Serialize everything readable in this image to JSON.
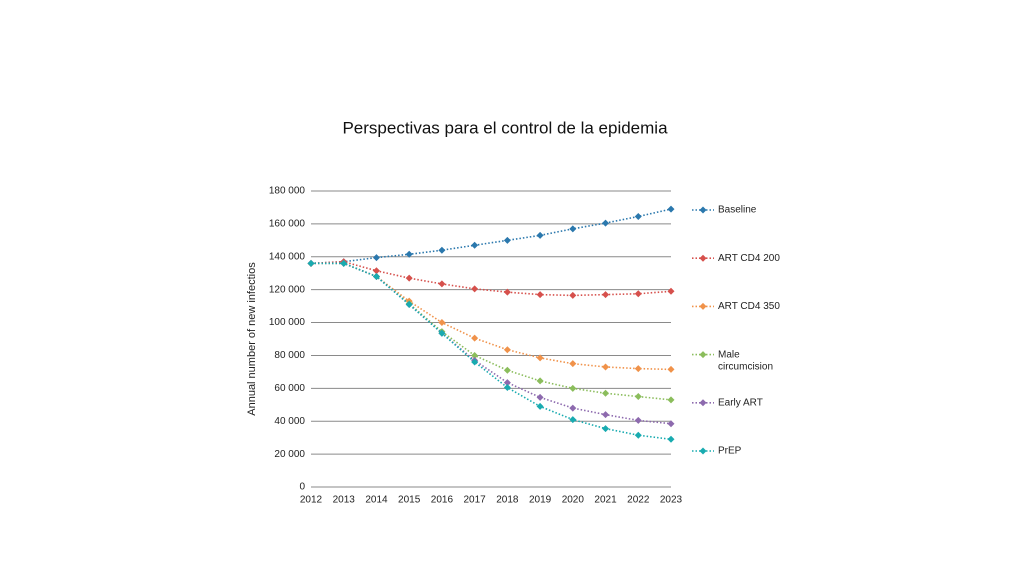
{
  "chart_data": {
    "type": "line",
    "title": "Perspectivas para el control de la epidemia",
    "y_label": "Annual number of new infectios",
    "x": [
      2012,
      2013,
      2014,
      2015,
      2016,
      2017,
      2018,
      2019,
      2020,
      2021,
      2022,
      2023
    ],
    "xlim": [
      2012,
      2023
    ],
    "xticks": [
      2012,
      2013,
      2014,
      2015,
      2016,
      2017,
      2018,
      2019,
      2020,
      2021,
      2022,
      2023
    ],
    "ylim": [
      0,
      180000
    ],
    "yticks": [
      0,
      {
        "value": 20000,
        "label": "20 000"
      },
      {
        "value": 40000,
        "label": "40 000"
      },
      {
        "value": 60000,
        "label": "60 000"
      },
      {
        "value": 80000,
        "label": "80 000"
      },
      {
        "value": 100000,
        "label": "100 000"
      },
      {
        "value": 120000,
        "label": "120 000"
      },
      {
        "value": 140000,
        "label": "140 000"
      },
      {
        "value": 160000,
        "label": "160 000"
      },
      {
        "value": 180000,
        "label": "180 000"
      }
    ],
    "grid": true,
    "legend": "right",
    "series": [
      {
        "name": "Baseline",
        "color": "#2b78ad",
        "values": [
          136000,
          137000,
          139500,
          141500,
          144000,
          147000,
          150000,
          153000,
          157000,
          160500,
          164500,
          169000
        ]
      },
      {
        "name": "ART CD4 200",
        "color": "#d6504c",
        "values": [
          136000,
          137000,
          131500,
          127000,
          123500,
          120500,
          118500,
          117000,
          116500,
          117000,
          117500,
          119000
        ]
      },
      {
        "name": "ART CD4 350",
        "color": "#f0924a",
        "values": [
          136000,
          136000,
          128000,
          113000,
          100000,
          90500,
          83500,
          78500,
          75000,
          73000,
          72000,
          71500
        ]
      },
      {
        "name": "Male circumcision",
        "color": "#8bbd5c",
        "values": [
          136000,
          136000,
          128000,
          111500,
          94500,
          80000,
          71000,
          64500,
          60000,
          57000,
          55000,
          53000
        ]
      },
      {
        "name": "Early ART",
        "color": "#8d6aae",
        "values": [
          136000,
          136000,
          128000,
          111000,
          93500,
          77000,
          63500,
          54500,
          48000,
          44000,
          40500,
          38500
        ]
      },
      {
        "name": "PrEP",
        "color": "#19abb0",
        "values": [
          136000,
          136000,
          128000,
          111000,
          93500,
          76000,
          60500,
          49000,
          41000,
          35500,
          31500,
          29000
        ]
      }
    ]
  }
}
